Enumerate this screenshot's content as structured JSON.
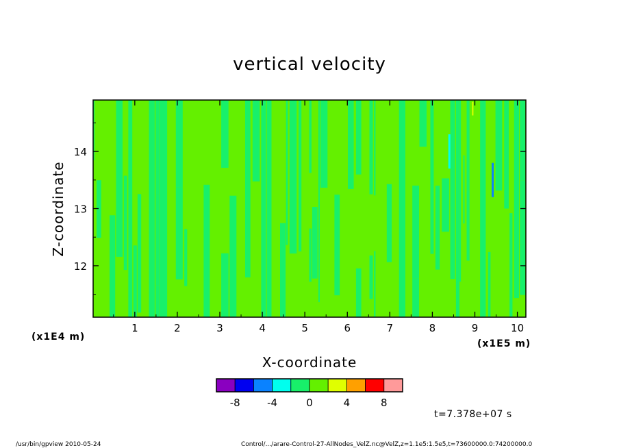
{
  "chart_data": {
    "type": "heatmap",
    "title": "vertical velocity",
    "xlabel": "X-coordinate",
    "ylabel": "Z-coordinate",
    "x_unit": "(x1E5 m)",
    "y_unit": "(x1E4 m)",
    "xlim": [
      0.02,
      10.2
    ],
    "ylim": [
      11.1,
      14.9
    ],
    "x_ticks": [
      1,
      2,
      3,
      4,
      5,
      6,
      7,
      8,
      9,
      10
    ],
    "y_ticks": [
      12,
      13,
      14
    ],
    "time_label": "t=7.378e+07 s",
    "colorbar": {
      "levels": [
        -10,
        -8,
        -6,
        -4,
        -2,
        0,
        2,
        4,
        6,
        8,
        10
      ],
      "tick_labels": [
        "-8",
        "-4",
        "0",
        "4",
        "8"
      ],
      "tick_values": [
        -8,
        -4,
        0,
        4,
        8
      ],
      "colors": [
        "#8a00c0",
        "#0000f0",
        "#0a82ff",
        "#00ffee",
        "#18f06a",
        "#64f000",
        "#e0ff00",
        "#ffa000",
        "#ff0000",
        "#ff9a9a"
      ]
    },
    "field_note": "values mostly between -2 and 2 with isolated -4 to -2 and 4 to 6 spots"
  },
  "footer": {
    "left": "/usr/bin/gpview   2010-05-24",
    "right": "Control/.../arare-Control-27-AllNodes_VelZ.nc@VelZ,z=1.1e5:1.5e5,t=73600000.0:74200000.0"
  }
}
